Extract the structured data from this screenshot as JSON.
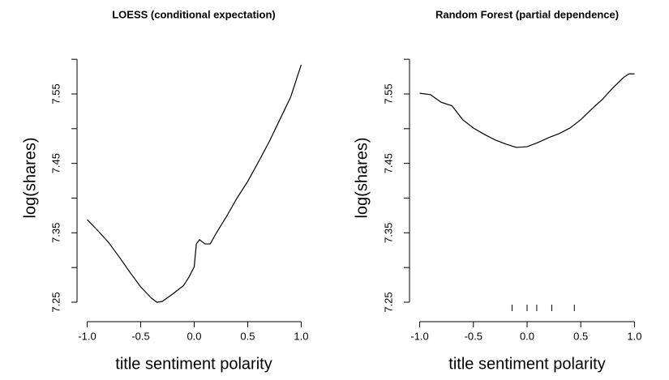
{
  "chart_data": [
    {
      "type": "line",
      "title": "LOESS (conditional expectation)",
      "x_label": "title sentiment polarity",
      "y_label": "log(shares)",
      "x": [
        -1,
        -0.9,
        -0.8,
        -0.7,
        -0.6,
        -0.5,
        -0.4,
        -0.35,
        -0.3,
        -0.2,
        -0.1,
        -0.05,
        0,
        0.02,
        0.05,
        0.1,
        0.15,
        0.2,
        0.3,
        0.4,
        0.5,
        0.6,
        0.7,
        0.8,
        0.9,
        1
      ],
      "values": [
        7.369,
        7.353,
        7.336,
        7.315,
        7.293,
        7.272,
        7.256,
        7.25,
        7.251,
        7.262,
        7.274,
        7.286,
        7.301,
        7.334,
        7.34,
        7.334,
        7.334,
        7.348,
        7.373,
        7.4,
        7.424,
        7.452,
        7.481,
        7.513,
        7.545,
        7.592
      ],
      "color": "#000000",
      "xlim": [
        -1.08,
        1.08
      ],
      "ylim": [
        7.222,
        7.613
      ],
      "xticks": [
        {
          "value": -1,
          "label": "-1.0"
        },
        {
          "value": -0.5,
          "label": "-0.5"
        },
        {
          "value": 0,
          "label": "0.0"
        },
        {
          "value": 0.5,
          "label": "0.5"
        },
        {
          "value": 1,
          "label": "1.0"
        }
      ],
      "yticks": [
        7.25,
        7.35,
        7.45,
        7.55
      ],
      "yminor": [
        7.3,
        7.4,
        7.5,
        7.6
      ]
    },
    {
      "type": "line",
      "title": "Random Forest (partial dependence)",
      "x_label": "title sentiment polarity",
      "y_label": "log(shares)",
      "x": [
        -1,
        -0.9,
        -0.8,
        -0.7,
        -0.6,
        -0.5,
        -0.4,
        -0.3,
        -0.2,
        -0.1,
        0,
        0.1,
        0.2,
        0.3,
        0.4,
        0.5,
        0.6,
        0.7,
        0.8,
        0.9,
        0.95,
        1
      ],
      "values": [
        7.551,
        7.549,
        7.538,
        7.533,
        7.513,
        7.501,
        7.492,
        7.484,
        7.478,
        7.473,
        7.474,
        7.48,
        7.487,
        7.493,
        7.501,
        7.513,
        7.528,
        7.542,
        7.559,
        7.574,
        7.579,
        7.579
      ],
      "rug": [
        -0.14,
        0,
        0.09,
        0.23,
        0.44
      ],
      "color": "#000000",
      "xlim": [
        -1.08,
        1.08
      ],
      "ylim": [
        7.222,
        7.613
      ],
      "xticks": [
        {
          "value": -1,
          "label": "-1.0"
        },
        {
          "value": -0.5,
          "label": "-0.5"
        },
        {
          "value": 0,
          "label": "0.0"
        },
        {
          "value": 0.5,
          "label": "0.5"
        },
        {
          "value": 1,
          "label": "1.0"
        }
      ],
      "yticks": [
        7.25,
        7.35,
        7.45,
        7.55
      ],
      "yminor": [
        7.3,
        7.4,
        7.5,
        7.6
      ]
    }
  ]
}
